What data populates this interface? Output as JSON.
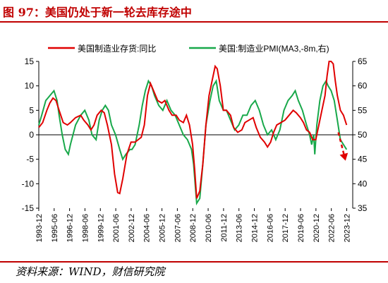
{
  "figure": {
    "title": "图 97：美国仍处于新一轮去库存途中",
    "source": "资料来源：WIND，财信研究院"
  },
  "colors": {
    "inventory": "#e00000",
    "pmi": "#18a84a",
    "arrow": "#e00000",
    "title": "#c00000",
    "axis": "#000000"
  },
  "chart_data": {
    "type": "line",
    "legend": {
      "placement": "top",
      "entries": [
        "美国制造业存货:同比",
        "美国:制造业PMI(MA3,-8m,右)"
      ]
    },
    "grid": false,
    "x_ticks": [
      "1993-12",
      "1995-06",
      "1996-12",
      "1998-06",
      "1999-12",
      "2001-06",
      "2002-12",
      "2004-06",
      "2005-12",
      "2007-06",
      "2008-12",
      "2010-06",
      "2011-12",
      "2013-06",
      "2014-12",
      "2016-06",
      "2017-12",
      "2019-06",
      "2020-12",
      "2022-06",
      "2023-12"
    ],
    "x_range": [
      1993.92,
      2024.5
    ],
    "y_left": {
      "range": [
        -15,
        15
      ],
      "ticks": [
        15,
        10,
        5,
        0,
        -5,
        -10,
        -15
      ]
    },
    "y_right": {
      "range": [
        35,
        65
      ],
      "ticks": [
        65,
        60,
        55,
        50,
        45,
        40,
        35
      ]
    },
    "series": [
      {
        "name": "美国制造业存货:同比",
        "axis": "left",
        "x": [
          1993.92,
          1994.3,
          1994.7,
          1995.0,
          1995.3,
          1995.6,
          1995.9,
          1996.3,
          1996.7,
          1997.0,
          1997.5,
          1998.0,
          1998.3,
          1998.7,
          1999.0,
          1999.3,
          1999.6,
          2000.0,
          2000.3,
          2000.6,
          2001.0,
          2001.3,
          2001.6,
          2001.8,
          2002.1,
          2002.5,
          2002.9,
          2003.3,
          2003.6,
          2003.9,
          2004.2,
          2004.5,
          2004.8,
          2005.1,
          2005.5,
          2005.9,
          2006.2,
          2006.6,
          2006.9,
          2007.3,
          2007.6,
          2008.0,
          2008.3,
          2008.6,
          2008.9,
          2009.1,
          2009.3,
          2009.6,
          2009.9,
          2010.2,
          2010.5,
          2010.8,
          2011.1,
          2011.3,
          2011.6,
          2011.9,
          2012.2,
          2012.6,
          2012.9,
          2013.3,
          2013.7,
          2014.0,
          2014.4,
          2014.8,
          2015.1,
          2015.5,
          2015.9,
          2016.2,
          2016.5,
          2016.8,
          2017.1,
          2017.5,
          2017.9,
          2018.3,
          2018.7,
          2019.0,
          2019.4,
          2019.7,
          2020.0,
          2020.3,
          2020.6,
          2020.9,
          2021.2,
          2021.5,
          2021.8,
          2022.0,
          2022.2,
          2022.4,
          2022.6,
          2022.8,
          2023.0,
          2023.3,
          2023.6,
          2023.9
        ],
        "values": [
          1.5,
          2.5,
          5,
          6.5,
          7.5,
          7,
          5,
          2.5,
          2,
          2.5,
          3.5,
          4,
          3,
          2,
          1,
          2,
          4,
          5,
          4.5,
          2,
          -2,
          -8,
          -11.8,
          -12,
          -9,
          -4,
          -1.5,
          -1.5,
          -1,
          -0.5,
          2,
          8,
          10.5,
          9,
          7,
          6.5,
          7,
          5,
          4,
          4,
          3,
          2.5,
          4,
          2,
          -2,
          -7,
          -13,
          -11.5,
          -6,
          2,
          8,
          11,
          14,
          13.5,
          10,
          5,
          5,
          4,
          1.5,
          0.5,
          1,
          2.5,
          3,
          3.5,
          1.5,
          -0.5,
          -1.5,
          -2.5,
          -1.5,
          0.5,
          2,
          2.5,
          3,
          4,
          5,
          4.5,
          3.5,
          2.5,
          1,
          0.5,
          -1,
          -1,
          2,
          5,
          8,
          12,
          15,
          15,
          14.5,
          11,
          8,
          5,
          4,
          2
        ]
      },
      {
        "name": "美国:制造业PMI(MA3,-8m,右)",
        "axis": "right",
        "x": [
          1993.92,
          1994.2,
          1994.6,
          1995.0,
          1995.4,
          1995.7,
          1995.9,
          1996.2,
          1996.5,
          1996.8,
          1997.0,
          1997.5,
          1998.0,
          1998.4,
          1998.8,
          1999.1,
          1999.5,
          1999.8,
          2000.1,
          2000.4,
          2000.7,
          2001.0,
          2001.4,
          2001.8,
          2002.1,
          2002.4,
          2002.8,
          2003.0,
          2003.3,
          2003.7,
          2004.0,
          2004.3,
          2004.6,
          2004.9,
          2005.2,
          2005.6,
          2006.0,
          2006.4,
          2006.8,
          2007.2,
          2007.6,
          2008.0,
          2008.4,
          2008.8,
          2009.0,
          2009.3,
          2009.6,
          2009.9,
          2010.2,
          2010.6,
          2010.9,
          2011.2,
          2011.5,
          2011.9,
          2012.2,
          2012.6,
          2013.0,
          2013.4,
          2013.8,
          2014.2,
          2014.6,
          2015.0,
          2015.4,
          2015.8,
          2016.2,
          2016.6,
          2017.0,
          2017.4,
          2017.8,
          2018.2,
          2018.6,
          2018.9,
          2019.2,
          2019.6,
          2020.0,
          2020.3,
          2020.5,
          2020.7,
          2020.8,
          2021.0,
          2021.3,
          2021.6,
          2021.9,
          2022.1,
          2022.4,
          2022.7,
          2023.0,
          2023.3,
          2023.6,
          2023.9
        ],
        "values": [
          52,
          54,
          57,
          58,
          59,
          57,
          54,
          50,
          47,
          46,
          48,
          52,
          54,
          55,
          53,
          50,
          49,
          53,
          55,
          56,
          55,
          52,
          50,
          47,
          45,
          46,
          47,
          47,
          48,
          52,
          56,
          59,
          61,
          60,
          58,
          56,
          55,
          57,
          55,
          54,
          52,
          50,
          49,
          47,
          44,
          36,
          37,
          44,
          52,
          57,
          60,
          61,
          57,
          55,
          55,
          53,
          51,
          52,
          54,
          54,
          56,
          57,
          55,
          52,
          50,
          51,
          49,
          51,
          55,
          57,
          58,
          59,
          57,
          55,
          52,
          50,
          48,
          50,
          46,
          52,
          57,
          60,
          61,
          60,
          59,
          57,
          53,
          49,
          48,
          47
        ]
      }
    ],
    "annotation": {
      "type": "dashed-arrow",
      "from": [
        2023.1,
        0.5
      ],
      "to": [
        2023.8,
        -5.3
      ]
    }
  }
}
